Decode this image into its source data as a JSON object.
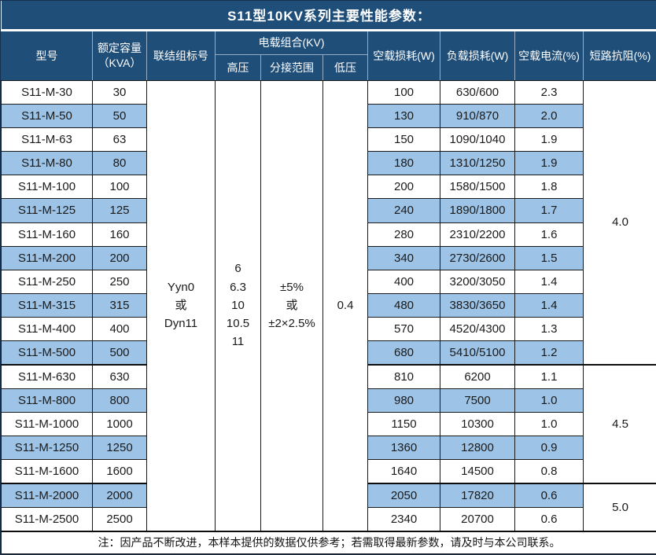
{
  "title": "S11型10KV系列主要性能参数：",
  "colors": {
    "header_bg": "#1f4e79",
    "header_text": "#ffffff",
    "alt_row_bg": "#9dc3e6",
    "body_text": "#1a1a1a",
    "grid_line": "#1a1a1a",
    "header_grid_line": "#97acc3"
  },
  "header": {
    "model": "型号",
    "capacity_line1": "额定容量",
    "capacity_line2": "（KVA）",
    "connection": "联结组标号",
    "voltage_group": "电载组合(KV)",
    "hv": "高压",
    "tap_range": "分接范围",
    "lv": "低压",
    "no_load_loss": "空载损耗(W)",
    "load_loss": "负载损耗(W)",
    "no_load_current": "空载电流(%)",
    "short_circuit_impedance": "短路抗阻(%)"
  },
  "shared": {
    "connection_lines": [
      "Yyn0",
      "或",
      "Dyn11"
    ],
    "hv_lines": [
      "6",
      "6.3",
      "10",
      "10.5",
      "11"
    ],
    "tap_lines": [
      "±5%",
      "或",
      "±2×2.5%"
    ],
    "lv_value": "0.4"
  },
  "rows": [
    {
      "model": "S11-M-30",
      "capacity": "30",
      "no_load_loss": "100",
      "load_loss": "630/600",
      "no_load_current": "2.3",
      "shaded": false
    },
    {
      "model": "S11-M-50",
      "capacity": "50",
      "no_load_loss": "130",
      "load_loss": "910/870",
      "no_load_current": "2.0",
      "shaded": true
    },
    {
      "model": "S11-M-63",
      "capacity": "63",
      "no_load_loss": "150",
      "load_loss": "1090/1040",
      "no_load_current": "1.9",
      "shaded": false
    },
    {
      "model": "S11-M-80",
      "capacity": "80",
      "no_load_loss": "180",
      "load_loss": "1310/1250",
      "no_load_current": "1.9",
      "shaded": true
    },
    {
      "model": "S11-M-100",
      "capacity": "100",
      "no_load_loss": "200",
      "load_loss": "1580/1500",
      "no_load_current": "1.8",
      "shaded": false
    },
    {
      "model": "S11-M-125",
      "capacity": "125",
      "no_load_loss": "240",
      "load_loss": "1890/1800",
      "no_load_current": "1.7",
      "shaded": true
    },
    {
      "model": "S11-M-160",
      "capacity": "160",
      "no_load_loss": "280",
      "load_loss": "2310/2200",
      "no_load_current": "1.6",
      "shaded": false
    },
    {
      "model": "S11-M-200",
      "capacity": "200",
      "no_load_loss": "340",
      "load_loss": "2730/2600",
      "no_load_current": "1.5",
      "shaded": true
    },
    {
      "model": "S11-M-250",
      "capacity": "250",
      "no_load_loss": "400",
      "load_loss": "3200/3050",
      "no_load_current": "1.4",
      "shaded": false
    },
    {
      "model": "S11-M-315",
      "capacity": "315",
      "no_load_loss": "480",
      "load_loss": "3830/3650",
      "no_load_current": "1.4",
      "shaded": true
    },
    {
      "model": "S11-M-400",
      "capacity": "400",
      "no_load_loss": "570",
      "load_loss": "4520/4300",
      "no_load_current": "1.3",
      "shaded": false
    },
    {
      "model": "S11-M-500",
      "capacity": "500",
      "no_load_loss": "680",
      "load_loss": "5410/5100",
      "no_load_current": "1.2",
      "shaded": true
    },
    {
      "model": "S11-M-630",
      "capacity": "630",
      "no_load_loss": "810",
      "load_loss": "6200",
      "no_load_current": "1.1",
      "shaded": false
    },
    {
      "model": "S11-M-800",
      "capacity": "800",
      "no_load_loss": "980",
      "load_loss": "7500",
      "no_load_current": "1.0",
      "shaded": true
    },
    {
      "model": "S11-M-1000",
      "capacity": "1000",
      "no_load_loss": "1150",
      "load_loss": "10300",
      "no_load_current": "1.0",
      "shaded": false
    },
    {
      "model": "S11-M-1250",
      "capacity": "1250",
      "no_load_loss": "1360",
      "load_loss": "12800",
      "no_load_current": "0.9",
      "shaded": true
    },
    {
      "model": "S11-M-1600",
      "capacity": "1600",
      "no_load_loss": "1640",
      "load_loss": "14500",
      "no_load_current": "0.8",
      "shaded": false
    },
    {
      "model": "S11-M-2000",
      "capacity": "2000",
      "no_load_loss": "2050",
      "load_loss": "17820",
      "no_load_current": "0.6",
      "shaded": true
    },
    {
      "model": "S11-M-2500",
      "capacity": "2500",
      "no_load_loss": "2340",
      "load_loss": "20700",
      "no_load_current": "0.6",
      "shaded": false
    }
  ],
  "impedance_groups": [
    {
      "value": "4.0",
      "rows": 12
    },
    {
      "value": "4.5",
      "rows": 5
    },
    {
      "value": "5.0",
      "rows": 2
    }
  ],
  "note": "注：因产品不断改进，本样本提供的数据仅供参考；若需取得最新参数，请及时与本公司联系。"
}
